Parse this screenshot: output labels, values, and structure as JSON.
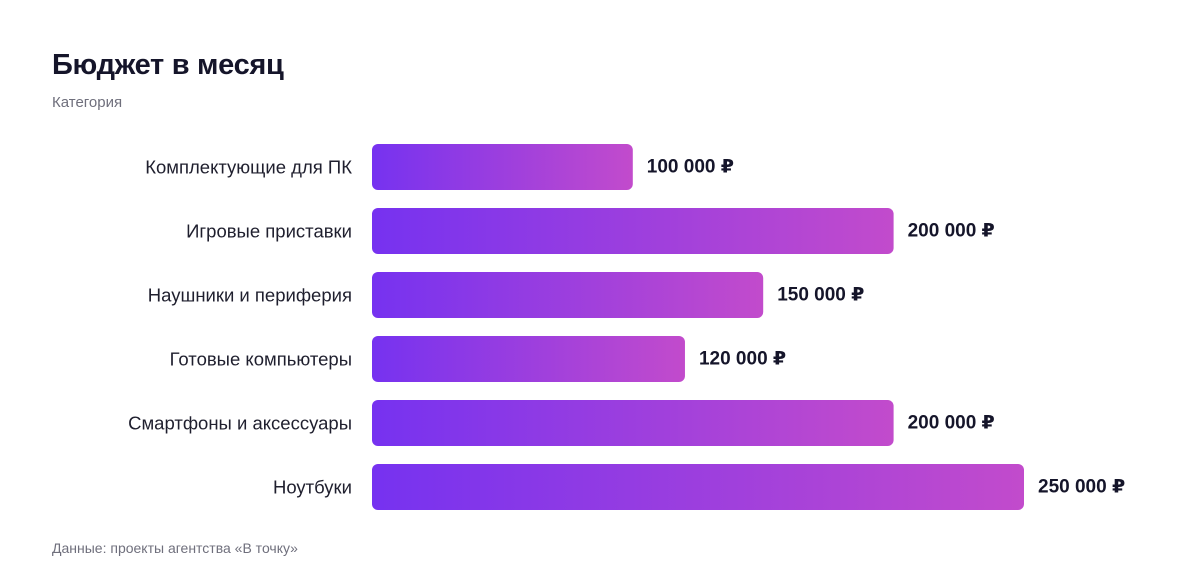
{
  "chart_data": {
    "type": "bar",
    "orientation": "horizontal",
    "title": "Бюджет в месяц",
    "subtitle": "Категория",
    "categories": [
      "Комплектующие для ПК",
      "Игровые приставки",
      "Наушники и периферия",
      "Готовые компьютеры",
      "Смартфоны и аксессуары",
      "Ноутбуки"
    ],
    "values": [
      100000,
      200000,
      150000,
      120000,
      200000,
      250000
    ],
    "value_labels": [
      "100 000 ₽",
      "200 000 ₽",
      "150 000 ₽",
      "120 000 ₽",
      "200 000 ₽",
      "250 000 ₽"
    ],
    "xlim": [
      0,
      250000
    ],
    "grid": false,
    "legend": "none",
    "colors": {
      "bar_gradient_start": "#7632f0",
      "bar_gradient_end": "#c24bcc"
    }
  },
  "source": "Данные: проекты агентства «В точку»"
}
